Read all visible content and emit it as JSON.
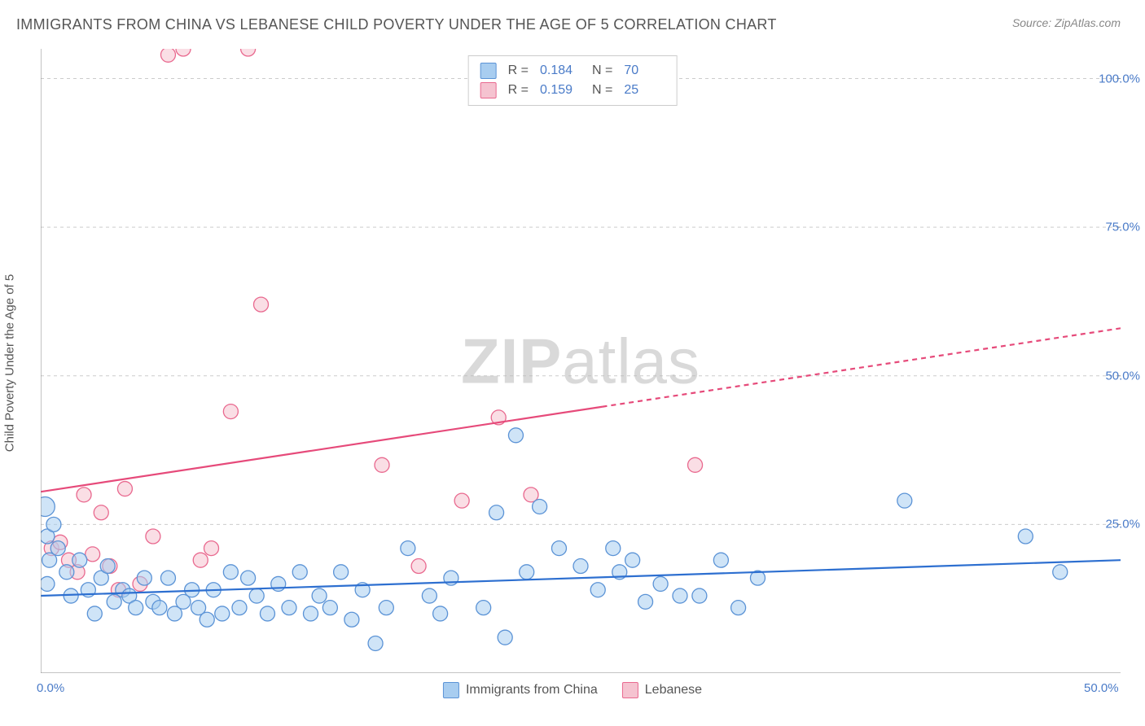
{
  "title": "IMMIGRANTS FROM CHINA VS LEBANESE CHILD POVERTY UNDER THE AGE OF 5 CORRELATION CHART",
  "source_prefix": "Source: ",
  "source_name": "ZipAtlas.com",
  "y_axis_label": "Child Poverty Under the Age of 5",
  "watermark_a": "ZIP",
  "watermark_b": "atlas",
  "chart": {
    "type": "scatter",
    "xlim": [
      0,
      50
    ],
    "ylim": [
      0,
      105
    ],
    "x_ticks": [
      0,
      50
    ],
    "x_tick_labels": [
      "0.0%",
      "50.0%"
    ],
    "y_ticks": [
      25,
      50,
      75,
      100
    ],
    "y_tick_labels": [
      "25.0%",
      "50.0%",
      "75.0%",
      "100.0%"
    ],
    "background_color": "#ffffff",
    "grid_color": "#cccccc",
    "axis_color": "#888888",
    "tick_label_color": "#4a7bc8",
    "marker_radius": 9,
    "marker_radius_large": 12,
    "series": [
      {
        "key": "china",
        "label": "Immigrants from China",
        "fill": "#a8cdf0",
        "stroke": "#5b93d6",
        "fill_opacity": 0.55,
        "R": "0.184",
        "N": "70",
        "trend": {
          "x1": 0,
          "y1": 13,
          "x2": 50,
          "y2": 19,
          "solid_until_x": 50,
          "color": "#2d6fd0",
          "width": 2.2
        },
        "points": [
          [
            0.2,
            28
          ],
          [
            0.3,
            23
          ],
          [
            0.4,
            19
          ],
          [
            0.6,
            25
          ],
          [
            0.8,
            21
          ],
          [
            1.2,
            17
          ],
          [
            1.4,
            13
          ],
          [
            1.8,
            19
          ],
          [
            2.2,
            14
          ],
          [
            2.5,
            10
          ],
          [
            2.8,
            16
          ],
          [
            3.1,
            18
          ],
          [
            3.4,
            12
          ],
          [
            3.8,
            14
          ],
          [
            4.1,
            13
          ],
          [
            4.4,
            11
          ],
          [
            4.8,
            16
          ],
          [
            5.2,
            12
          ],
          [
            5.5,
            11
          ],
          [
            5.9,
            16
          ],
          [
            6.2,
            10
          ],
          [
            6.6,
            12
          ],
          [
            7.0,
            14
          ],
          [
            7.3,
            11
          ],
          [
            7.7,
            9
          ],
          [
            8.0,
            14
          ],
          [
            8.4,
            10
          ],
          [
            8.8,
            17
          ],
          [
            9.2,
            11
          ],
          [
            9.6,
            16
          ],
          [
            10.0,
            13
          ],
          [
            10.5,
            10
          ],
          [
            11.0,
            15
          ],
          [
            11.5,
            11
          ],
          [
            12.0,
            17
          ],
          [
            12.5,
            10
          ],
          [
            12.9,
            13
          ],
          [
            13.4,
            11
          ],
          [
            13.9,
            17
          ],
          [
            14.4,
            9
          ],
          [
            14.9,
            14
          ],
          [
            15.5,
            5
          ],
          [
            16.0,
            11
          ],
          [
            17.0,
            21
          ],
          [
            18.0,
            13
          ],
          [
            18.5,
            10
          ],
          [
            19.0,
            16
          ],
          [
            20.5,
            11
          ],
          [
            21.1,
            27
          ],
          [
            21.5,
            6
          ],
          [
            22.0,
            40
          ],
          [
            22.5,
            17
          ],
          [
            23.1,
            28
          ],
          [
            24.0,
            21
          ],
          [
            25.0,
            18
          ],
          [
            25.8,
            14
          ],
          [
            26.5,
            21
          ],
          [
            26.8,
            17
          ],
          [
            27.4,
            19
          ],
          [
            28.0,
            12
          ],
          [
            28.7,
            15
          ],
          [
            29.6,
            13
          ],
          [
            30.5,
            13
          ],
          [
            31.5,
            19
          ],
          [
            32.3,
            11
          ],
          [
            33.2,
            16
          ],
          [
            40.0,
            29
          ],
          [
            45.6,
            23
          ],
          [
            47.2,
            17
          ],
          [
            0.3,
            15
          ]
        ]
      },
      {
        "key": "lebanese",
        "label": "Lebanese",
        "fill": "#f5c3d0",
        "stroke": "#e9698f",
        "fill_opacity": 0.55,
        "R": "0.159",
        "N": "25",
        "trend": {
          "x1": 0,
          "y1": 30.5,
          "x2": 50,
          "y2": 58,
          "solid_until_x": 26,
          "color": "#e64a7a",
          "width": 2.2
        },
        "points": [
          [
            0.5,
            21
          ],
          [
            1.3,
            19
          ],
          [
            1.7,
            17
          ],
          [
            2.0,
            30
          ],
          [
            2.4,
            20
          ],
          [
            2.8,
            27
          ],
          [
            3.2,
            18
          ],
          [
            3.6,
            14
          ],
          [
            3.9,
            31
          ],
          [
            4.6,
            15
          ],
          [
            5.9,
            104
          ],
          [
            6.6,
            105
          ],
          [
            7.4,
            19
          ],
          [
            7.9,
            21
          ],
          [
            8.8,
            44
          ],
          [
            9.6,
            105
          ],
          [
            10.2,
            62
          ],
          [
            15.8,
            35
          ],
          [
            17.5,
            18
          ],
          [
            19.5,
            29
          ],
          [
            21.2,
            43
          ],
          [
            22.7,
            30
          ],
          [
            30.3,
            35
          ],
          [
            0.9,
            22
          ],
          [
            5.2,
            23
          ]
        ]
      }
    ]
  },
  "legend_top": {
    "r_label": "R =",
    "n_label": "N ="
  }
}
